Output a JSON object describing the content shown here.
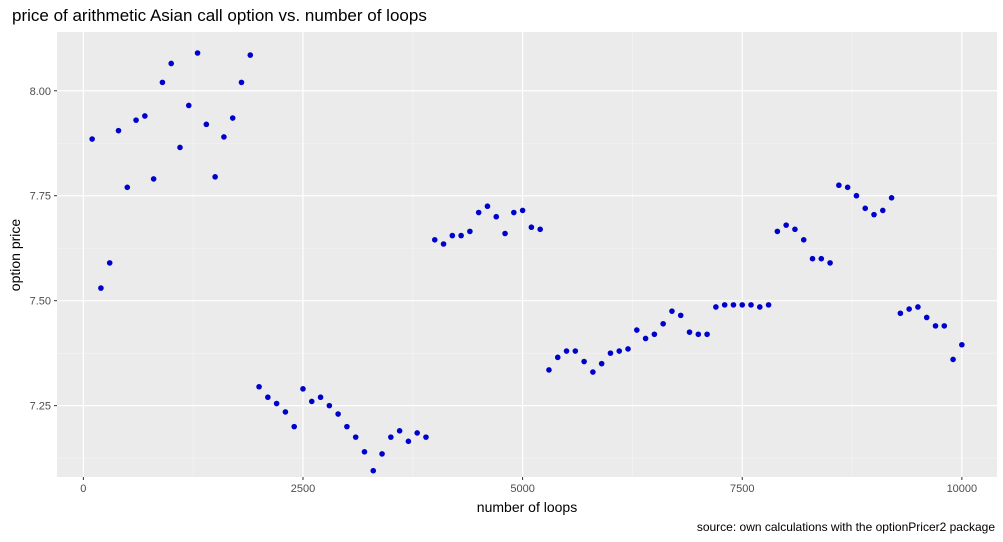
{
  "chart_data": {
    "type": "scatter",
    "title": "price of arithmetic Asian call option vs. number of loops",
    "caption": "source: own calculations with the optionPricer2 package",
    "xlabel": "number of loops",
    "ylabel": "option price",
    "xlim": [
      -300,
      10400
    ],
    "ylim": [
      7.08,
      8.14
    ],
    "x_ticks": [
      0,
      2500,
      5000,
      7500,
      10000
    ],
    "x_tick_labels": [
      "0",
      "2500",
      "5000",
      "7500",
      "10000"
    ],
    "y_ticks": [
      7.25,
      7.5,
      7.75,
      8.0
    ],
    "y_tick_labels": [
      "7.25",
      "7.50",
      "7.75",
      "8.00"
    ],
    "grid": true,
    "point_color": "#0000CD",
    "x": [
      100,
      200,
      300,
      400,
      500,
      600,
      700,
      800,
      900,
      1000,
      1100,
      1200,
      1300,
      1400,
      1500,
      1600,
      1700,
      1800,
      1900,
      2000,
      2100,
      2200,
      2300,
      2400,
      2500,
      2600,
      2700,
      2800,
      2900,
      3000,
      3100,
      3200,
      3300,
      3400,
      3500,
      3600,
      3700,
      3800,
      3900,
      4000,
      4100,
      4200,
      4300,
      4400,
      4500,
      4600,
      4700,
      4800,
      4900,
      5000,
      5100,
      5200,
      5300,
      5400,
      5500,
      5600,
      5700,
      5800,
      5900,
      6000,
      6100,
      6200,
      6300,
      6400,
      6500,
      6600,
      6700,
      6800,
      6900,
      7000,
      7100,
      7200,
      7300,
      7400,
      7500,
      7600,
      7700,
      7800,
      7900,
      8000,
      8100,
      8200,
      8300,
      8400,
      8500,
      8600,
      8700,
      8800,
      8900,
      9000,
      9100,
      9200,
      9300,
      9400,
      9500,
      9600,
      9700,
      9800,
      9900,
      10000
    ],
    "y": [
      7.885,
      7.53,
      7.59,
      7.905,
      7.77,
      7.93,
      7.94,
      7.79,
      8.02,
      8.065,
      7.865,
      7.965,
      8.09,
      7.92,
      7.795,
      7.89,
      7.935,
      8.02,
      8.085,
      7.295,
      7.27,
      7.255,
      7.235,
      7.2,
      7.29,
      7.26,
      7.27,
      7.25,
      7.23,
      7.2,
      7.175,
      7.14,
      7.095,
      7.135,
      7.175,
      7.19,
      7.165,
      7.185,
      7.175,
      7.645,
      7.635,
      7.655,
      7.655,
      7.665,
      7.71,
      7.725,
      7.7,
      7.66,
      7.71,
      7.715,
      7.675,
      7.67,
      7.335,
      7.365,
      7.38,
      7.38,
      7.355,
      7.33,
      7.35,
      7.375,
      7.38,
      7.385,
      7.43,
      7.41,
      7.42,
      7.445,
      7.475,
      7.465,
      7.425,
      7.42,
      7.42,
      7.485,
      7.49,
      7.49,
      7.49,
      7.49,
      7.485,
      7.49,
      7.665,
      7.68,
      7.67,
      7.645,
      7.6,
      7.6,
      7.59,
      7.775,
      7.77,
      7.75,
      7.72,
      7.705,
      7.715,
      7.745,
      7.47,
      7.48,
      7.485,
      7.46,
      7.44,
      7.44,
      7.36,
      7.395
    ]
  }
}
